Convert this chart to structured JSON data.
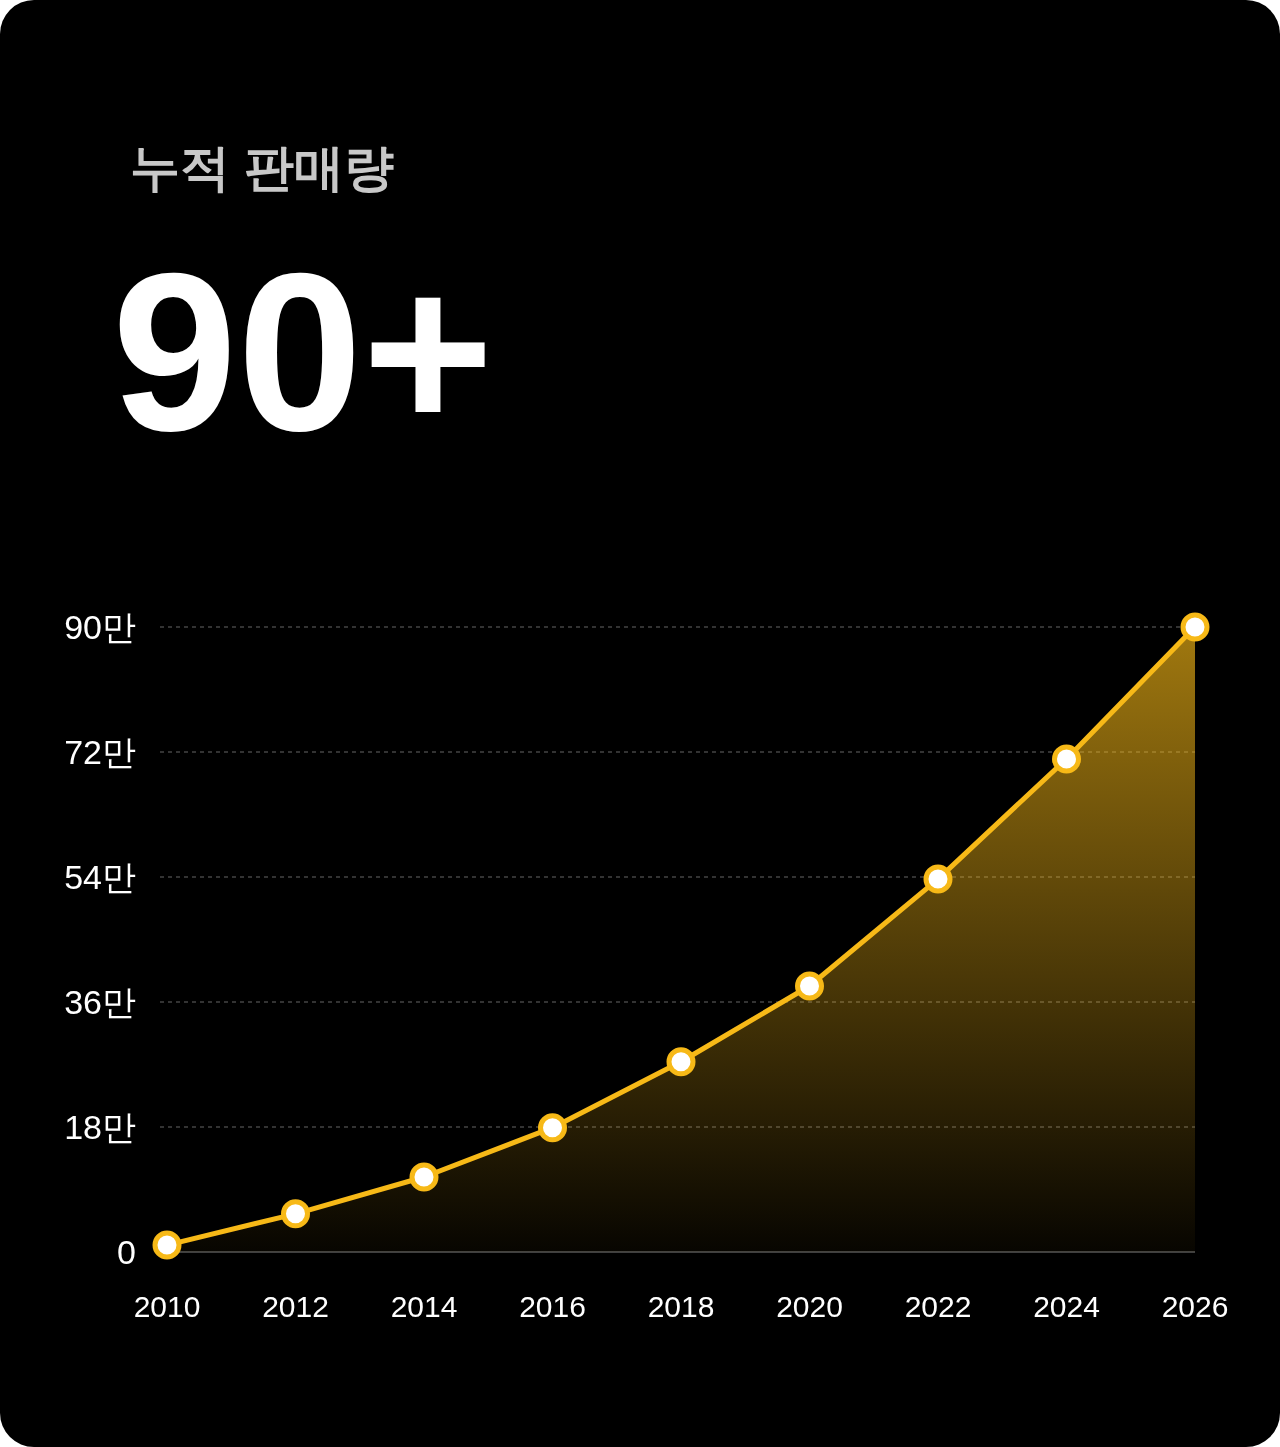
{
  "chart_data": {
    "type": "area",
    "title": "누적 판매량",
    "subtitle": "90+",
    "categories": [
      "2010",
      "2012",
      "2014",
      "2016",
      "2018",
      "2020",
      "2022",
      "2024",
      "2026"
    ],
    "series": [
      {
        "color": "#f7b917",
        "values": [
          1.0,
          5.5,
          10.8,
          17.9,
          27.4,
          38.3,
          53.7,
          71.0,
          90
        ]
      }
    ],
    "ylim": [
      0,
      90
    ],
    "yticks": [
      0,
      {
        "value": 18,
        "label": "18만"
      },
      {
        "value": 36,
        "label": "36만"
      },
      {
        "value": 54,
        "label": "54만"
      },
      {
        "value": 72,
        "label": "72만"
      },
      {
        "value": 90,
        "label": "90만"
      }
    ],
    "grid": "y",
    "marker": "circle"
  }
}
